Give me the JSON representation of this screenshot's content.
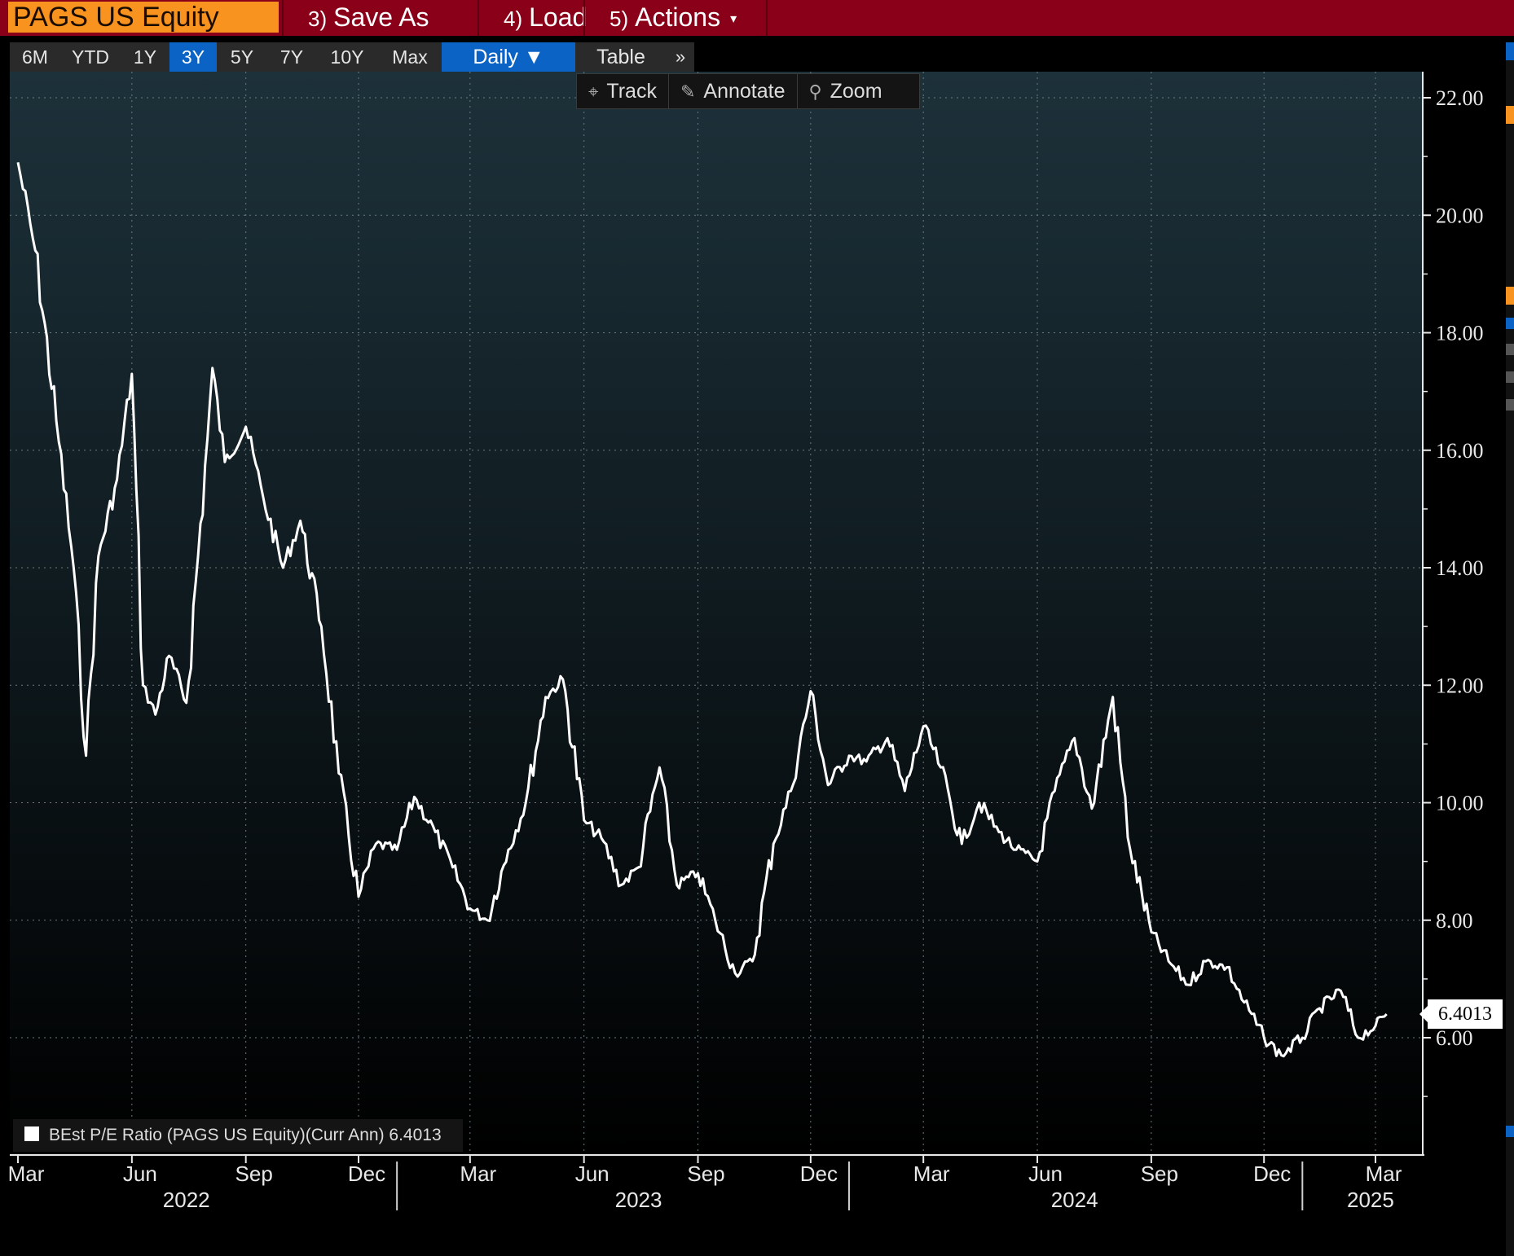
{
  "topbar": {
    "ticker": "PAGS US Equity",
    "save_as": {
      "num": "3)",
      "label": "Save As"
    },
    "load": {
      "num": "4)",
      "label": "Load"
    },
    "actions": {
      "num": "5)",
      "label": "Actions",
      "caret": "▾"
    }
  },
  "periods": [
    "6M",
    "YTD",
    "1Y",
    "3Y",
    "5Y",
    "7Y",
    "10Y",
    "Max"
  ],
  "active_period": "3Y",
  "frequency": "Daily ▼",
  "table_label": "Table",
  "more_label": "»",
  "tools": {
    "track": {
      "icon": "crosshair-icon",
      "label": "Track"
    },
    "annotate": {
      "icon": "pencil-icon",
      "label": "Annotate"
    },
    "zoom": {
      "icon": "magnifier-icon",
      "label": "Zoom"
    }
  },
  "legend": {
    "text": "BEst P/E Ratio (PAGS US Equity)(Curr Ann) 6.4013",
    "color": "#ffffff"
  },
  "last_value": "6.4013",
  "colors": {
    "topbar": "#8b0019",
    "ticker_bg": "#f7931e",
    "accent_blue": "#0b63c6",
    "line": "#ffffff"
  },
  "chart_data": {
    "type": "line",
    "series": [
      {
        "name": "BEst P/E Ratio (PAGS US Equity)(Curr Ann)",
        "x": [
          "2022-03-01",
          "2022-03-15",
          "2022-04-01",
          "2022-04-15",
          "2022-04-25",
          "2022-05-05",
          "2022-05-20",
          "2022-06-01",
          "2022-06-10",
          "2022-06-20",
          "2022-07-01",
          "2022-07-15",
          "2022-08-01",
          "2022-08-05",
          "2022-08-15",
          "2022-09-01",
          "2022-09-15",
          "2022-10-01",
          "2022-10-15",
          "2022-11-01",
          "2022-11-15",
          "2022-12-01",
          "2022-12-15",
          "2023-01-01",
          "2023-01-15",
          "2023-02-01",
          "2023-02-15",
          "2023-03-01",
          "2023-03-15",
          "2023-04-01",
          "2023-04-15",
          "2023-05-01",
          "2023-05-15",
          "2023-06-01",
          "2023-06-15",
          "2023-07-01",
          "2023-07-15",
          "2023-08-01",
          "2023-08-15",
          "2023-09-01",
          "2023-09-15",
          "2023-10-01",
          "2023-10-15",
          "2023-11-01",
          "2023-11-15",
          "2023-12-01",
          "2023-12-15",
          "2024-01-01",
          "2024-01-15",
          "2024-02-01",
          "2024-02-15",
          "2024-03-01",
          "2024-03-15",
          "2024-04-01",
          "2024-04-15",
          "2024-05-01",
          "2024-05-15",
          "2024-06-01",
          "2024-06-15",
          "2024-07-01",
          "2024-07-15",
          "2024-08-01",
          "2024-08-15",
          "2024-09-01",
          "2024-09-15",
          "2024-10-01",
          "2024-10-15",
          "2024-11-01",
          "2024-11-15",
          "2024-12-01",
          "2024-12-15",
          "2025-01-01",
          "2025-01-15",
          "2025-02-01",
          "2025-02-15",
          "2025-03-01",
          "2025-03-10"
        ],
        "values": [
          20.9,
          19.4,
          16.5,
          14.0,
          10.8,
          14.2,
          15.5,
          17.3,
          12.0,
          11.5,
          12.5,
          11.7,
          16.2,
          17.4,
          15.8,
          16.4,
          15.2,
          14.0,
          14.8,
          13.0,
          10.5,
          8.4,
          9.3,
          9.2,
          10.1,
          9.5,
          8.9,
          8.2,
          8.0,
          9.2,
          10.0,
          11.8,
          12.1,
          9.7,
          9.4,
          8.6,
          8.9,
          10.6,
          8.6,
          8.8,
          8.0,
          7.1,
          7.3,
          9.3,
          10.2,
          11.9,
          10.3,
          10.8,
          10.7,
          11.1,
          10.2,
          11.3,
          10.6,
          9.3,
          10.0,
          9.5,
          9.2,
          9.0,
          10.2,
          11.1,
          9.9,
          11.8,
          9.2,
          7.8,
          7.3,
          6.9,
          7.3,
          7.2,
          6.6,
          6.0,
          5.7,
          6.0,
          6.5,
          6.8,
          6.0,
          6.2,
          6.4013
        ]
      }
    ],
    "ylim": [
      4.0,
      22.5
    ],
    "yticks": [
      "22.00",
      "20.00",
      "18.00",
      "16.00",
      "14.00",
      "12.00",
      "10.00",
      "8.00",
      "6.00"
    ],
    "xticks_month": [
      "Mar",
      "Jun",
      "Sep",
      "Dec",
      "Mar",
      "Jun",
      "Sep",
      "Dec",
      "Mar",
      "Jun",
      "Sep",
      "Dec",
      "Mar"
    ],
    "xticks_year": [
      "2022",
      "2023",
      "2024",
      "2025"
    ],
    "grid": true,
    "legend_position": "bottom-left"
  }
}
